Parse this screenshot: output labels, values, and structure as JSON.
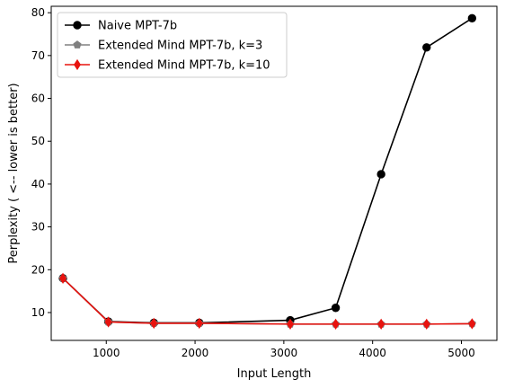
{
  "chart_data": {
    "type": "line",
    "xlabel": "Input Length",
    "ylabel": "Perplexity ( <-- lower is better)",
    "xlim": [
      380,
      5400
    ],
    "ylim": [
      3.5,
      81.5
    ],
    "xticks": [
      1000,
      2000,
      3000,
      4000,
      5000
    ],
    "yticks": [
      10,
      20,
      30,
      40,
      50,
      60,
      70,
      80
    ],
    "grid": false,
    "legend_position": "upper-left",
    "series": [
      {
        "name": "Naive MPT-7b",
        "color": "#000000",
        "marker": "circle",
        "x": [
          512,
          1024,
          1536,
          2048,
          3072,
          3584,
          4096,
          4608,
          5120
        ],
        "y": [
          18.0,
          7.9,
          7.6,
          7.6,
          8.2,
          11.1,
          42.3,
          71.9,
          78.7
        ]
      },
      {
        "name": "Extended Mind MPT-7b, k=3",
        "color": "#808080",
        "marker": "pentagon",
        "x": [
          512,
          1024,
          1536,
          2048,
          3072,
          3584,
          4096,
          4608,
          5120
        ],
        "y": [
          18.0,
          7.8,
          7.5,
          7.5,
          7.3,
          7.3,
          7.3,
          7.3,
          7.4
        ]
      },
      {
        "name": "Extended Mind MPT-7b, k=10",
        "color": "#e8130f",
        "marker": "diamond",
        "x": [
          512,
          1024,
          1536,
          2048,
          3072,
          3584,
          4096,
          4608,
          5120
        ],
        "y": [
          18.0,
          7.8,
          7.5,
          7.5,
          7.3,
          7.3,
          7.3,
          7.3,
          7.4
        ]
      }
    ]
  }
}
